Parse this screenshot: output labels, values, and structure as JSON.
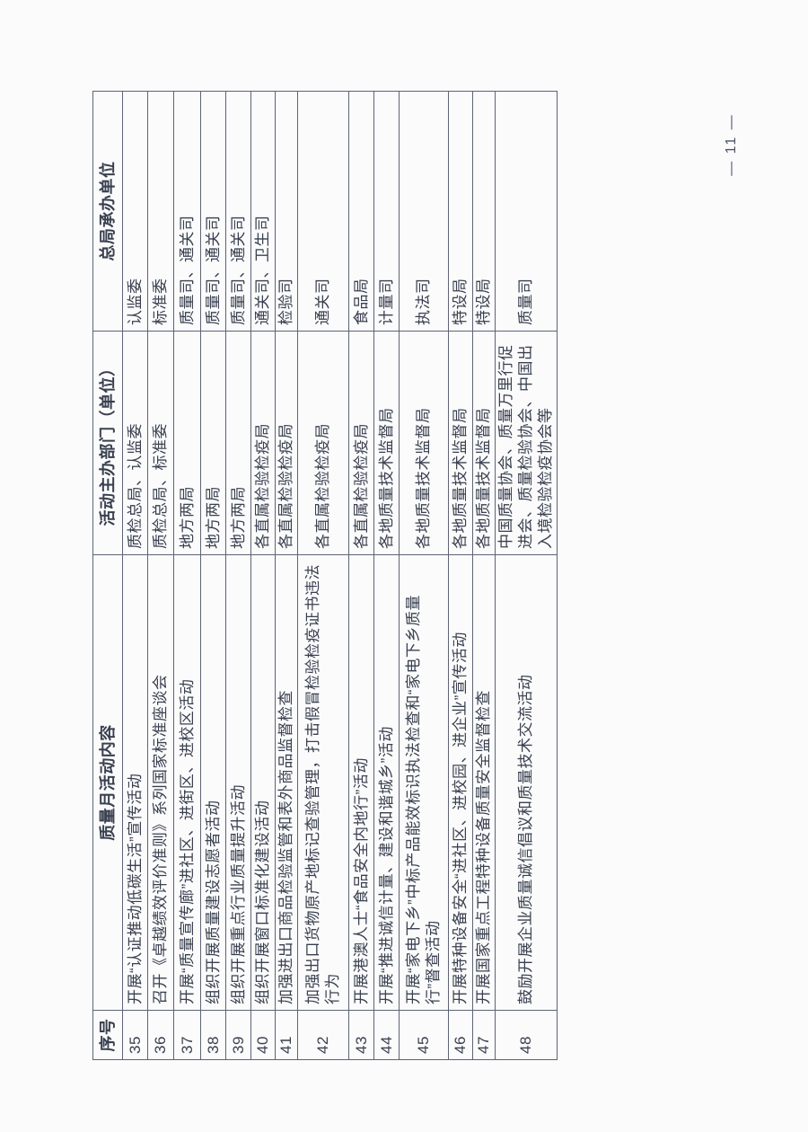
{
  "page": {
    "number_label": "— 11 —"
  },
  "table": {
    "headers": [
      "序号",
      "质量月活动内容",
      "活动主办部门（单位）",
      "总局承办单位"
    ],
    "rows": [
      {
        "no": "35",
        "content": "开展“认证推动低碳生活”宣传活动",
        "organizer": "质检总局、认监委",
        "undertaker": "认监委"
      },
      {
        "no": "36",
        "content": "召开《卓越绩效评价准则》系列国家标准座谈会",
        "organizer": "质检总局、标准委",
        "undertaker": "标准委"
      },
      {
        "no": "37",
        "content": "开展“质量宣传廊”进社区、进街区、进校区活动",
        "organizer": "地方两局",
        "undertaker": "质量司、通关司"
      },
      {
        "no": "38",
        "content": "组织开展质量建设志愿者活动",
        "organizer": "地方两局",
        "undertaker": "质量司、通关司"
      },
      {
        "no": "39",
        "content": "组织开展重点行业质量提升活动",
        "organizer": "地方两局",
        "undertaker": "质量司、通关司"
      },
      {
        "no": "40",
        "content": "组织开展窗口标准化建设活动",
        "organizer": "各直属检验检疫局",
        "undertaker": "通关司、卫生司"
      },
      {
        "no": "41",
        "content": "加强进出口商品检验监管和表外商品监督检查",
        "organizer": "各直属检验检疫局",
        "undertaker": "检验司"
      },
      {
        "no": "42",
        "content": "加强出口货物原产地标记查验管理，打击假冒检验检疫证书违法行为",
        "organizer": "各直属检验检疫局",
        "undertaker": "通关司"
      },
      {
        "no": "43",
        "content": "开展港澳人士“食品安全内地行”活动",
        "organizer": "各直属检验检疫局",
        "undertaker": "食品局"
      },
      {
        "no": "44",
        "content": "开展“推进诚信计量、建设和谐城乡”活动",
        "organizer": "各地质量技术监督局",
        "undertaker": "计量司"
      },
      {
        "no": "45",
        "content": "开展“家电下乡”中标产品能效标识执法检查和“家电下乡质量行”督查活动",
        "organizer": "各地质量技术监督局",
        "undertaker": "执法司"
      },
      {
        "no": "46",
        "content": "开展特种设备安全“进社区、进校园、进企业”宣传活动",
        "organizer": "各地质量技术监督局",
        "undertaker": "特设局"
      },
      {
        "no": "47",
        "content": "开展国家重点工程特种设备质量安全监督检查",
        "organizer": "各地质量技术监督局",
        "undertaker": "特设局"
      },
      {
        "no": "48",
        "content": "鼓励开展企业质量诚信倡议和质量技术交流活动",
        "organizer": "中国质量协会、质量万里行促进会、质量检验协会、中国出入境检验检疫协会等",
        "undertaker": "质量司"
      }
    ]
  }
}
